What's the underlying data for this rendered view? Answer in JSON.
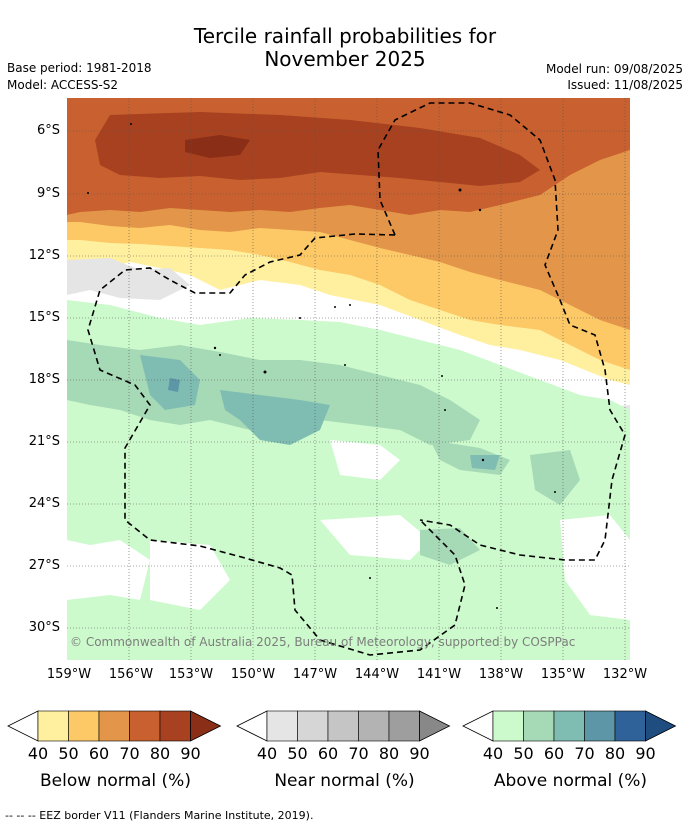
{
  "title": {
    "line1": "Tercile rainfall probabilities for",
    "line2": "November 2025"
  },
  "meta": {
    "base_period": "Base period: 1981-2018",
    "model": "Model: ACCESS-S2",
    "model_run": "Model run: 09/08/2025",
    "issued": "Issued: 11/08/2025"
  },
  "axes": {
    "lat_labels": [
      "6°S",
      "9°S",
      "12°S",
      "15°S",
      "18°S",
      "21°S",
      "24°S",
      "27°S",
      "30°S"
    ],
    "lon_labels": [
      "159°W",
      "156°W",
      "153°W",
      "150°W",
      "147°W",
      "144°W",
      "141°W",
      "138°W",
      "135°W",
      "132°W"
    ]
  },
  "copyright": "© Commonwealth of Australia 2025, Bureau of Meteorology, supported by COSPPac",
  "colorbars": [
    {
      "label": "Below normal (%)",
      "ticks": [
        "40",
        "50",
        "60",
        "70",
        "80",
        "90"
      ],
      "colors": [
        "#fff0a0",
        "#fdc966",
        "#e39649",
        "#c8612f",
        "#a8411f",
        "#8a2e17"
      ]
    },
    {
      "label": "Near normal (%)",
      "ticks": [
        "40",
        "50",
        "60",
        "70",
        "80",
        "90"
      ],
      "colors": [
        "#e5e5e5",
        "#d6d6d6",
        "#c5c5c5",
        "#b3b3b3",
        "#9e9e9e",
        "#888888"
      ]
    },
    {
      "label": "Above normal (%)",
      "ticks": [
        "40",
        "50",
        "60",
        "70",
        "80",
        "90"
      ],
      "colors": [
        "#ccfacc",
        "#a6d9b6",
        "#7fbcb1",
        "#5d96a6",
        "#2e6298",
        "#1f4d80"
      ]
    }
  ],
  "footer": "--  --  -- EEZ border V11 (Flanders Marine Institute, 2019)."
}
